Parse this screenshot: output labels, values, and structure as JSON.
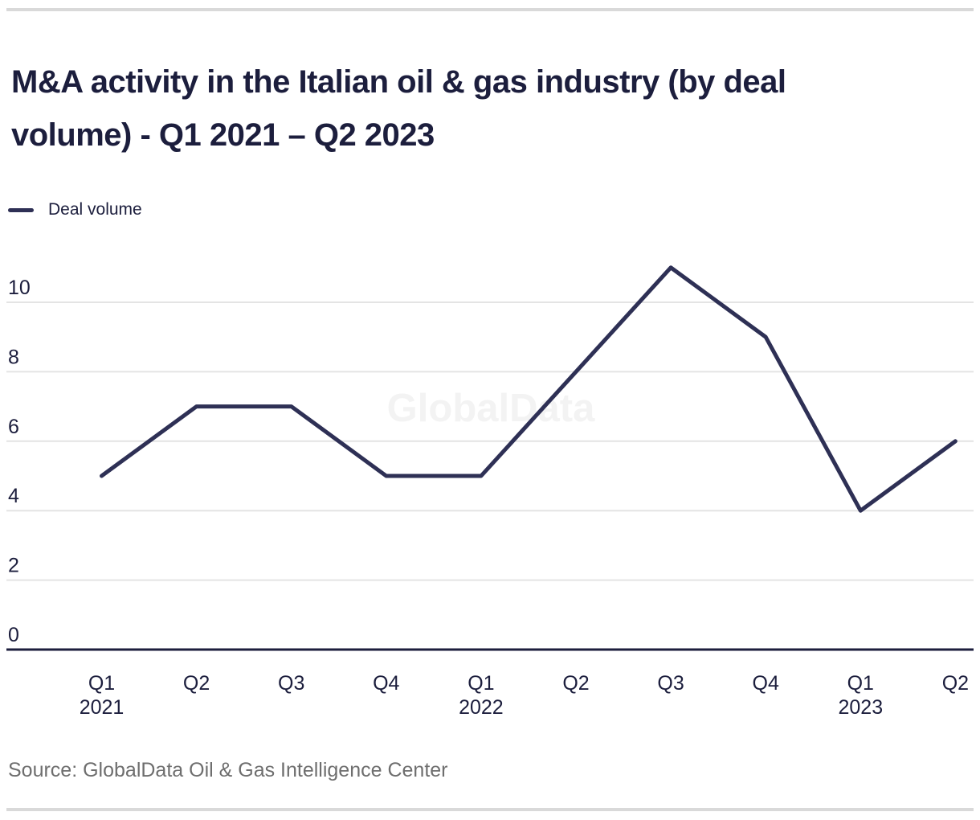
{
  "header": {
    "title_line1": "M&A activity in the Italian oil & gas industry (by deal",
    "title_line2": "volume) - Q1 2021 – Q2 2023"
  },
  "legend": {
    "label": "Deal volume"
  },
  "watermark": "GlobalData",
  "footer": {
    "source": "Source: GlobalData Oil & Gas Intelligence Center"
  },
  "theme": {
    "accent_line": "#2e3055",
    "axis": "#1c1e3d",
    "grid": "#e4e4e4",
    "border": "#d9d9d9",
    "text": "#1c1e3d",
    "muted_text": "#6e6e6e",
    "watermark": "#f3f3f3"
  },
  "chart_data": {
    "type": "line",
    "title": "M&A activity in the Italian oil & gas industry (by deal volume) - Q1 2021 – Q2 2023",
    "categories": [
      "Q1 2021",
      "Q2 2021",
      "Q3 2021",
      "Q4 2021",
      "Q1 2022",
      "Q2 2022",
      "Q3 2022",
      "Q4 2022",
      "Q1 2023",
      "Q2 2023"
    ],
    "x_tick_lines": [
      [
        "Q1",
        "2021"
      ],
      [
        "Q2"
      ],
      [
        "Q3"
      ],
      [
        "Q4"
      ],
      [
        "Q1",
        "2022"
      ],
      [
        "Q2"
      ],
      [
        "Q3"
      ],
      [
        "Q4"
      ],
      [
        "Q1",
        "2023"
      ],
      [
        "Q2"
      ]
    ],
    "series": [
      {
        "name": "Deal volume",
        "values": [
          5,
          7,
          7,
          5,
          5,
          8,
          11,
          9,
          4,
          6
        ]
      }
    ],
    "xlabel": "",
    "ylabel": "",
    "y_ticks": [
      0,
      2,
      4,
      6,
      8,
      10
    ],
    "ylim": [
      0,
      11.2
    ],
    "grid": "horizontal",
    "legend_position": "top-left",
    "source": "Source: GlobalData Oil & Gas Intelligence Center"
  }
}
